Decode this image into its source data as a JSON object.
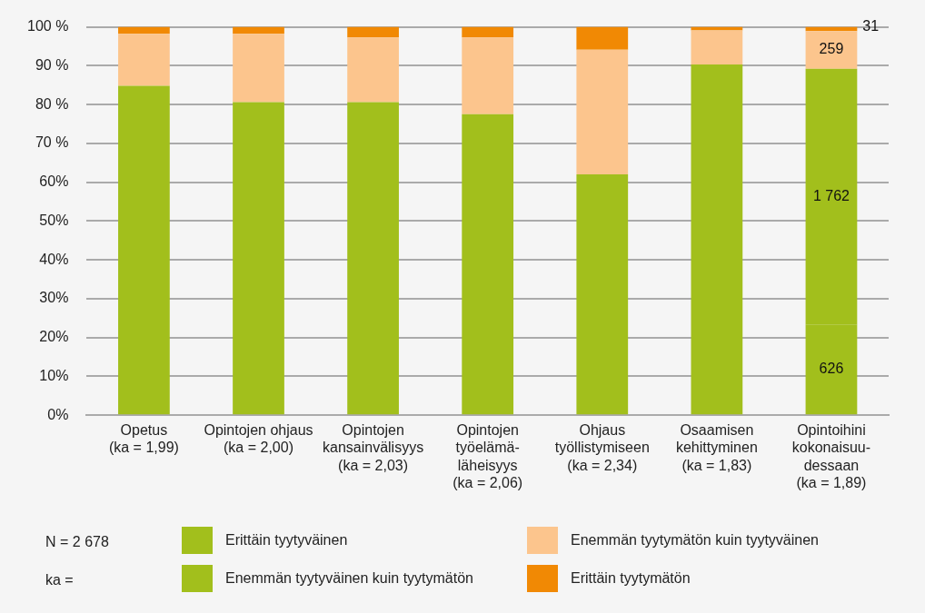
{
  "chart_data": {
    "type": "bar",
    "stacked": true,
    "categories": [
      "Opetus\n(ka = 1,99)",
      "Opintojen ohjaus\n(ka = 2,00)",
      "Opintojen\nkansainvälisyys\n(ka = 2,03)",
      "Opintojen\ntyöelämä-\nläheisyys\n(ka = 2,06)",
      "Ohjaus\ntyöllistymiseen\n(ka = 2,34)",
      "Osaamisen\nkehittyminen\n(ka = 1,83)",
      "Opintoihini\nkokonaisuu-\ndessaan\n(ka = 1,89)"
    ],
    "series": [
      {
        "name": "Erittäin tyytyväinen",
        "color": "#a2bf1c",
        "values": [
          null,
          null,
          null,
          null,
          null,
          null,
          23.4
        ]
      },
      {
        "name": "Enemmän tyytyväinen kuin tyytymätön",
        "color": "#a2bf1c",
        "values": [
          84.8,
          80.6,
          80.6,
          77.5,
          62.0,
          90.3,
          65.8
        ]
      },
      {
        "name": "Enemmän tyytymätön kuin tyytyväinen",
        "color": "#fcc58d",
        "values": [
          13.4,
          17.6,
          16.7,
          19.8,
          32.1,
          8.8,
          9.7
        ]
      },
      {
        "name": "Erittäin tyytymätön",
        "color": "#f18904",
        "values": [
          1.8,
          1.8,
          2.7,
          2.7,
          5.9,
          0.9,
          1.1
        ]
      }
    ],
    "ylim": [
      0,
      100
    ],
    "yticks": [
      {
        "value": 0,
        "label": "0%"
      },
      {
        "value": 10,
        "label": "10%"
      },
      {
        "value": 20,
        "label": "20%"
      },
      {
        "value": 30,
        "label": "30%"
      },
      {
        "value": 40,
        "label": "40%"
      },
      {
        "value": 50,
        "label": "50%"
      },
      {
        "value": 60,
        "label": "60%"
      },
      {
        "value": 70,
        "label": "70 %"
      },
      {
        "value": 80,
        "label": "80 %"
      },
      {
        "value": 90,
        "label": "90 %"
      },
      {
        "value": 100,
        "label": "100 %"
      }
    ],
    "grid": "y",
    "legend": "bottom",
    "annotations": [
      "N = 2 678",
      "ka =",
      "626",
      "1 762",
      "259",
      "31"
    ]
  }
}
